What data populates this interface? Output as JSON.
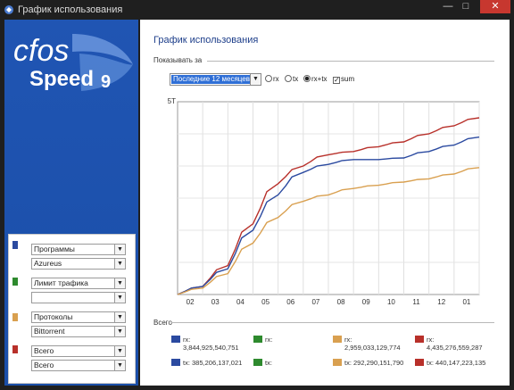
{
  "window": {
    "title": "График использования",
    "min_label": "—",
    "max_label": "□",
    "close_label": "✕"
  },
  "logo": {
    "line1": "cfos",
    "line2": "Speed",
    "version": "9"
  },
  "filters": [
    {
      "color": "#2b4aa0",
      "primary": "Программы",
      "secondary": "Azureus"
    },
    {
      "color": "#2e8a2e",
      "primary": "Лимит трафика",
      "secondary": ""
    },
    {
      "color": "#d9a050",
      "primary": "Протоколы",
      "secondary": "Bittorrent"
    },
    {
      "color": "#b8302a",
      "primary": "Всего",
      "secondary": "Всего"
    }
  ],
  "content": {
    "heading": "График использования",
    "show_for_label": "Показывать за",
    "period": "Последние 12 месяцев",
    "options": [
      {
        "label": "rx",
        "type": "radio",
        "checked": false
      },
      {
        "label": "tx",
        "type": "radio",
        "checked": false
      },
      {
        "label": "rx+tx",
        "type": "radio",
        "checked": true
      },
      {
        "label": "sum",
        "type": "check",
        "checked": true
      }
    ],
    "totals_label": "Всего"
  },
  "chart_data": {
    "type": "line",
    "y_tick_label": "5T",
    "x": [
      "02",
      "03",
      "04",
      "05",
      "06",
      "07",
      "08",
      "09",
      "10",
      "11",
      "12",
      "01"
    ],
    "ylim": [
      0,
      6
    ],
    "grid": true,
    "series": [
      {
        "color": "#b8302a",
        "values": [
          0.25,
          0.9,
          2.2,
          3.45,
          4.0,
          4.35,
          4.45,
          4.6,
          4.75,
          5.0,
          5.25,
          5.5
        ]
      },
      {
        "color": "#2b4aa0",
        "values": [
          0.25,
          0.8,
          2.0,
          3.1,
          3.8,
          4.05,
          4.2,
          4.2,
          4.25,
          4.45,
          4.65,
          4.9
        ]
      },
      {
        "color": "#d9a050",
        "values": [
          0.2,
          0.65,
          1.6,
          2.4,
          2.9,
          3.1,
          3.3,
          3.4,
          3.5,
          3.6,
          3.75,
          3.95
        ]
      }
    ]
  },
  "legend": [
    {
      "color": "#2b4aa0",
      "k": "rx:",
      "v": "3,844,925,540,751"
    },
    {
      "color": "#2e8a2e",
      "k": "rx:",
      "v": ""
    },
    {
      "color": "#d9a050",
      "k": "rx:",
      "v": "2,959,033,129,774"
    },
    {
      "color": "#b8302a",
      "k": "rx:",
      "v": "4,435,276,559,287"
    },
    {
      "color": "#2b4aa0",
      "k": "tx: 385,206,137,021",
      "v": ""
    },
    {
      "color": "#2e8a2e",
      "k": "tx:",
      "v": ""
    },
    {
      "color": "#d9a050",
      "k": "tx: 292,290,151,790",
      "v": ""
    },
    {
      "color": "#b8302a",
      "k": "tx: 440,147,223,135",
      "v": ""
    }
  ]
}
